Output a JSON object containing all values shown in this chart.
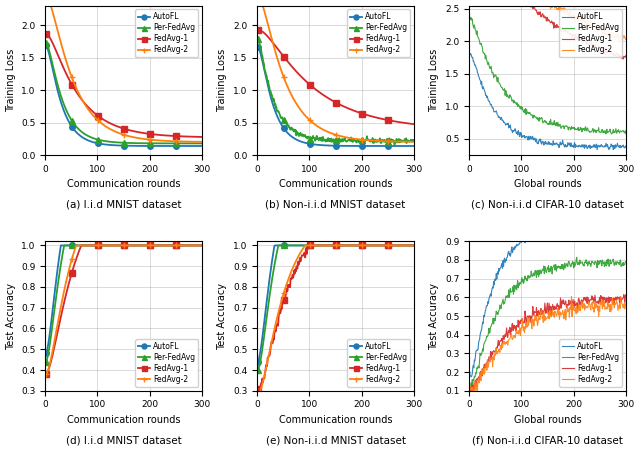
{
  "colors": {
    "AutoFL": "#1f77b4",
    "Per-FedAvg": "#2ca02c",
    "FedAvg-1": "#d62728",
    "FedAvg-2": "#ff7f0e"
  },
  "markers": {
    "AutoFL": "o",
    "Per-FedAvg": "^",
    "FedAvg-1": "s",
    "FedAvg-2": "+"
  },
  "legend_labels": [
    "AutoFL",
    "Per-FedAvg",
    "FedAvg-1",
    "FedAvg-2"
  ],
  "subplot_captions": [
    "(a) I.i.d MNIST dataset",
    "(b) Non-i.i.d MNIST dataset",
    "(c) Non-i.i.d CIFAR-10 dataset",
    "(d) I.i.d MNIST dataset",
    "(e) Non-i.i.d MNIST dataset",
    "(f) Non-i.i.d CIFAR-10 dataset"
  ],
  "xlabels": [
    "Communication rounds",
    "Communication rounds",
    "Global rounds",
    "Communication rounds",
    "Communication rounds",
    "Global rounds"
  ],
  "ylabels_top": [
    "Training Loss",
    "Training Loss",
    "Training Loss"
  ],
  "ylabels_bottom": [
    "Test Accuracy",
    "Test Accuracy",
    "Test Accuracy"
  ],
  "xlim": [
    0,
    300
  ],
  "figsize": [
    6.4,
    4.54
  ],
  "dpi": 100
}
